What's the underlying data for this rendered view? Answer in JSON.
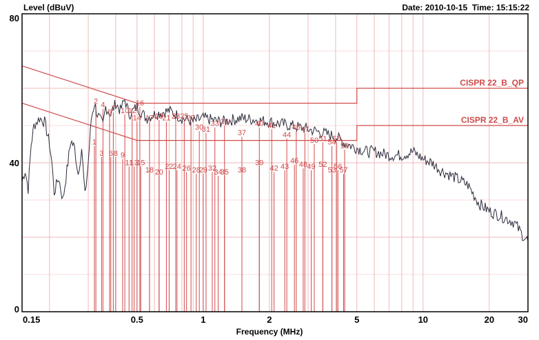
{
  "header": {
    "y_axis_label": "Level (dBuV)",
    "date_label": "Date:",
    "date": "2010-10-15",
    "time_label": "Time:",
    "time": "15:15:22"
  },
  "chart_data": {
    "type": "line",
    "xlabel": "Frequency (MHz)",
    "ylabel": "Level (dBuV)",
    "x_scale": "log",
    "xlim": [
      0.15,
      30
    ],
    "ylim": [
      0,
      80
    ],
    "x_ticks": [
      0.15,
      0.5,
      1,
      2,
      5,
      10,
      20,
      30
    ],
    "x_tick_labels": [
      "0.15",
      "0.5",
      "1",
      "2",
      "5",
      "10",
      "20",
      "30"
    ],
    "y_ticks": [
      0,
      40,
      80
    ],
    "y_tick_labels": [
      "0",
      "40",
      "80"
    ],
    "grid": true,
    "colors": {
      "trace": "#2a2a3a",
      "limit": "#d04a4a",
      "grid": "#f2b8b8"
    },
    "limits": [
      {
        "name": "CISPR 22_B_QP",
        "points": [
          [
            0.15,
            66
          ],
          [
            0.5,
            56
          ],
          [
            5,
            56
          ],
          [
            5,
            60
          ],
          [
            30,
            60
          ]
        ]
      },
      {
        "name": "CISPR 22_B_AV",
        "points": [
          [
            0.15,
            56
          ],
          [
            0.5,
            46
          ],
          [
            5,
            46
          ],
          [
            5,
            50
          ],
          [
            30,
            50
          ]
        ]
      }
    ],
    "series": [
      {
        "values": [
          [
            0.15,
            35
          ],
          [
            0.155,
            38
          ],
          [
            0.16,
            33
          ],
          [
            0.165,
            45
          ],
          [
            0.17,
            50
          ],
          [
            0.18,
            52
          ],
          [
            0.19,
            51
          ],
          [
            0.2,
            45
          ],
          [
            0.205,
            40
          ],
          [
            0.21,
            32
          ],
          [
            0.22,
            36
          ],
          [
            0.23,
            30
          ],
          [
            0.24,
            38
          ],
          [
            0.25,
            46
          ],
          [
            0.26,
            44
          ],
          [
            0.27,
            37
          ],
          [
            0.28,
            44
          ],
          [
            0.29,
            31
          ],
          [
            0.3,
            40
          ],
          [
            0.31,
            52
          ],
          [
            0.32,
            56
          ],
          [
            0.33,
            53
          ],
          [
            0.35,
            50
          ],
          [
            0.36,
            55
          ],
          [
            0.38,
            53
          ],
          [
            0.4,
            56
          ],
          [
            0.42,
            54
          ],
          [
            0.44,
            57
          ],
          [
            0.46,
            53
          ],
          [
            0.5,
            55
          ],
          [
            0.55,
            52
          ],
          [
            0.6,
            53
          ],
          [
            0.7,
            54
          ],
          [
            0.8,
            52
          ],
          [
            0.9,
            51
          ],
          [
            1.0,
            52
          ],
          [
            1.2,
            51
          ],
          [
            1.5,
            52
          ],
          [
            2.0,
            51
          ],
          [
            2.5,
            50
          ],
          [
            3.0,
            49
          ],
          [
            3.5,
            48
          ],
          [
            4.0,
            47
          ],
          [
            4.5,
            45
          ],
          [
            5.0,
            44
          ],
          [
            5.5,
            43
          ],
          [
            6.0,
            43
          ],
          [
            7.0,
            42
          ],
          [
            8.0,
            42
          ],
          [
            9.0,
            43
          ],
          [
            10.0,
            41
          ],
          [
            11.0,
            40
          ],
          [
            12.0,
            38
          ],
          [
            14.0,
            36
          ],
          [
            16.0,
            34
          ],
          [
            18.0,
            29
          ],
          [
            20.0,
            27
          ],
          [
            22.0,
            26
          ],
          [
            24.0,
            25
          ],
          [
            26.0,
            24
          ],
          [
            28.0,
            21
          ],
          [
            30.0,
            19
          ]
        ]
      }
    ],
    "markers": [
      {
        "label": "1",
        "x": 0.32,
        "y": 44.5
      },
      {
        "label": "2",
        "x": 0.325,
        "y": 55.5
      },
      {
        "label": "3",
        "x": 0.345,
        "y": 41.5
      },
      {
        "label": "4",
        "x": 0.35,
        "y": 54.5
      },
      {
        "label": "5",
        "x": 0.375,
        "y": 52.5
      },
      {
        "label": "6",
        "x": 0.38,
        "y": 41.5
      },
      {
        "label": "7",
        "x": 0.39,
        "y": 53.5
      },
      {
        "label": "8",
        "x": 0.4,
        "y": 41.5
      },
      {
        "label": "9",
        "x": 0.43,
        "y": 41
      },
      {
        "label": "10",
        "x": 0.44,
        "y": 53
      },
      {
        "label": "11",
        "x": 0.46,
        "y": 39
      },
      {
        "label": "12",
        "x": 0.475,
        "y": 53
      },
      {
        "label": "13",
        "x": 0.485,
        "y": 39
      },
      {
        "label": "14",
        "x": 0.5,
        "y": 51
      },
      {
        "label": "15",
        "x": 0.52,
        "y": 39
      },
      {
        "label": "16",
        "x": 0.515,
        "y": 55
      },
      {
        "label": "17",
        "x": 0.57,
        "y": 51
      },
      {
        "label": "18",
        "x": 0.57,
        "y": 37
      },
      {
        "label": "19",
        "x": 0.63,
        "y": 51.5
      },
      {
        "label": "20",
        "x": 0.63,
        "y": 36.5
      },
      {
        "label": "21",
        "x": 0.68,
        "y": 51
      },
      {
        "label": "22",
        "x": 0.7,
        "y": 38
      },
      {
        "label": "23",
        "x": 0.75,
        "y": 51.5
      },
      {
        "label": "24",
        "x": 0.76,
        "y": 38
      },
      {
        "label": "25",
        "x": 0.82,
        "y": 51.5
      },
      {
        "label": "26",
        "x": 0.84,
        "y": 37.5
      },
      {
        "label": "27",
        "x": 0.88,
        "y": 51
      },
      {
        "label": "28",
        "x": 0.93,
        "y": 37
      },
      {
        "label": "29",
        "x": 1.0,
        "y": 37
      },
      {
        "label": "30",
        "x": 0.96,
        "y": 48.5
      },
      {
        "label": "31",
        "x": 1.03,
        "y": 48
      },
      {
        "label": "32",
        "x": 1.1,
        "y": 37.5
      },
      {
        "label": "33",
        "x": 1.13,
        "y": 49.5
      },
      {
        "label": "34",
        "x": 1.17,
        "y": 36.5
      },
      {
        "label": "35",
        "x": 1.25,
        "y": 36.5
      },
      {
        "label": "36",
        "x": 1.25,
        "y": 50
      },
      {
        "label": "37",
        "x": 1.5,
        "y": 47
      },
      {
        "label": "38",
        "x": 1.5,
        "y": 37
      },
      {
        "label": "39",
        "x": 1.8,
        "y": 39
      },
      {
        "label": "40",
        "x": 1.8,
        "y": 49.5
      },
      {
        "label": "41",
        "x": 2.05,
        "y": 49
      },
      {
        "label": "42",
        "x": 2.1,
        "y": 37.5
      },
      {
        "label": "43",
        "x": 2.35,
        "y": 38
      },
      {
        "label": "44",
        "x": 2.4,
        "y": 46.5
      },
      {
        "label": "45",
        "x": 2.65,
        "y": 48.5
      },
      {
        "label": "46",
        "x": 2.6,
        "y": 39.5
      },
      {
        "label": "47",
        "x": 2.9,
        "y": 48
      },
      {
        "label": "48",
        "x": 2.85,
        "y": 38.5
      },
      {
        "label": "49",
        "x": 3.1,
        "y": 38
      },
      {
        "label": "50",
        "x": 3.2,
        "y": 45
      },
      {
        "label": "51",
        "x": 3.5,
        "y": 45.5
      },
      {
        "label": "52",
        "x": 3.5,
        "y": 38.5
      },
      {
        "label": "53",
        "x": 3.85,
        "y": 37
      },
      {
        "label": "54",
        "x": 3.85,
        "y": 44.5
      },
      {
        "label": "55",
        "x": 4.05,
        "y": 45.5
      },
      {
        "label": "56",
        "x": 4.1,
        "y": 38
      },
      {
        "label": "57",
        "x": 4.35,
        "y": 37
      },
      {
        "label": "58",
        "x": 4.4,
        "y": 43.5
      }
    ]
  }
}
